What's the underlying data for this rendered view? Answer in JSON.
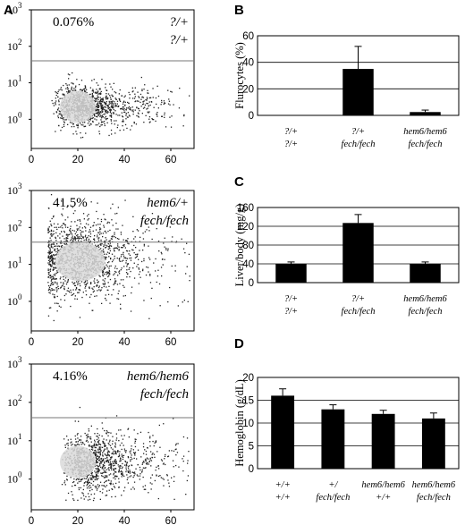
{
  "panels": {
    "A": "A",
    "B": "B",
    "C": "C",
    "D": "D"
  },
  "flow": {
    "y_ticks": [
      {
        "base": "10",
        "exp": "0",
        "value": 1
      },
      {
        "base": "10",
        "exp": "1",
        "value": 10
      },
      {
        "base": "10",
        "exp": "2",
        "value": 100
      },
      {
        "base": "10",
        "exp": "3",
        "value": 1000
      }
    ],
    "x_ticks": [
      "0",
      "20",
      "40",
      "60"
    ],
    "plots": [
      {
        "percent": "0.076%",
        "genotype_line1": "?/+",
        "genotype_line2": "?/+",
        "gate": 40
      },
      {
        "percent": "41.5%",
        "genotype_line1": "hem6/+",
        "genotype_line2": "fech/fech",
        "gate": 40
      },
      {
        "percent": "4.16%",
        "genotype_line1": "hem6/hem6",
        "genotype_line2": "fech/fech",
        "gate": 40
      }
    ]
  },
  "chart_data": [
    {
      "type": "bar",
      "panel": "B",
      "ylabel": "Flurocytes (%)",
      "ylim": [
        0,
        60
      ],
      "yticks": [
        "0",
        "20",
        "40",
        "60"
      ],
      "grid": true,
      "categories": [
        {
          "line1": "?/+",
          "line2": "?/+"
        },
        {
          "line1": "?/+",
          "line2": "fech/fech"
        },
        {
          "line1": "hem6/hem6",
          "line2": "fech/fech"
        }
      ],
      "values": [
        0.1,
        35,
        2.5
      ],
      "errors": [
        0,
        17,
        1.5
      ]
    },
    {
      "type": "bar",
      "panel": "C",
      "ylabel": "Liver/body (mg/g)",
      "ylim": [
        0,
        160
      ],
      "yticks": [
        "0",
        "40",
        "80",
        "120",
        "160"
      ],
      "grid": true,
      "categories": [
        {
          "line1": "?/+",
          "line2": "?/+"
        },
        {
          "line1": "?/+",
          "line2": "fech/fech"
        },
        {
          "line1": "hem6/hem6",
          "line2": "fech/fech"
        }
      ],
      "values": [
        40,
        127,
        40
      ],
      "errors": [
        4,
        18,
        4
      ]
    },
    {
      "type": "bar",
      "panel": "D",
      "ylabel": "Hemoglobin (g/dL)",
      "ylim": [
        0,
        20
      ],
      "yticks": [
        "0",
        "5",
        "10",
        "15",
        "20"
      ],
      "grid": true,
      "categories": [
        {
          "line1": "+/+",
          "line2": "+/+"
        },
        {
          "line1": "+/",
          "line2": "fech/fech"
        },
        {
          "line1": "hem6/hem6",
          "line2": "+/+"
        },
        {
          "line1": "hem6/hem6",
          "line2": "fech/fech"
        }
      ],
      "values": [
        16,
        13,
        12,
        11
      ],
      "errors": [
        1.5,
        1,
        0.8,
        1.2
      ]
    }
  ]
}
